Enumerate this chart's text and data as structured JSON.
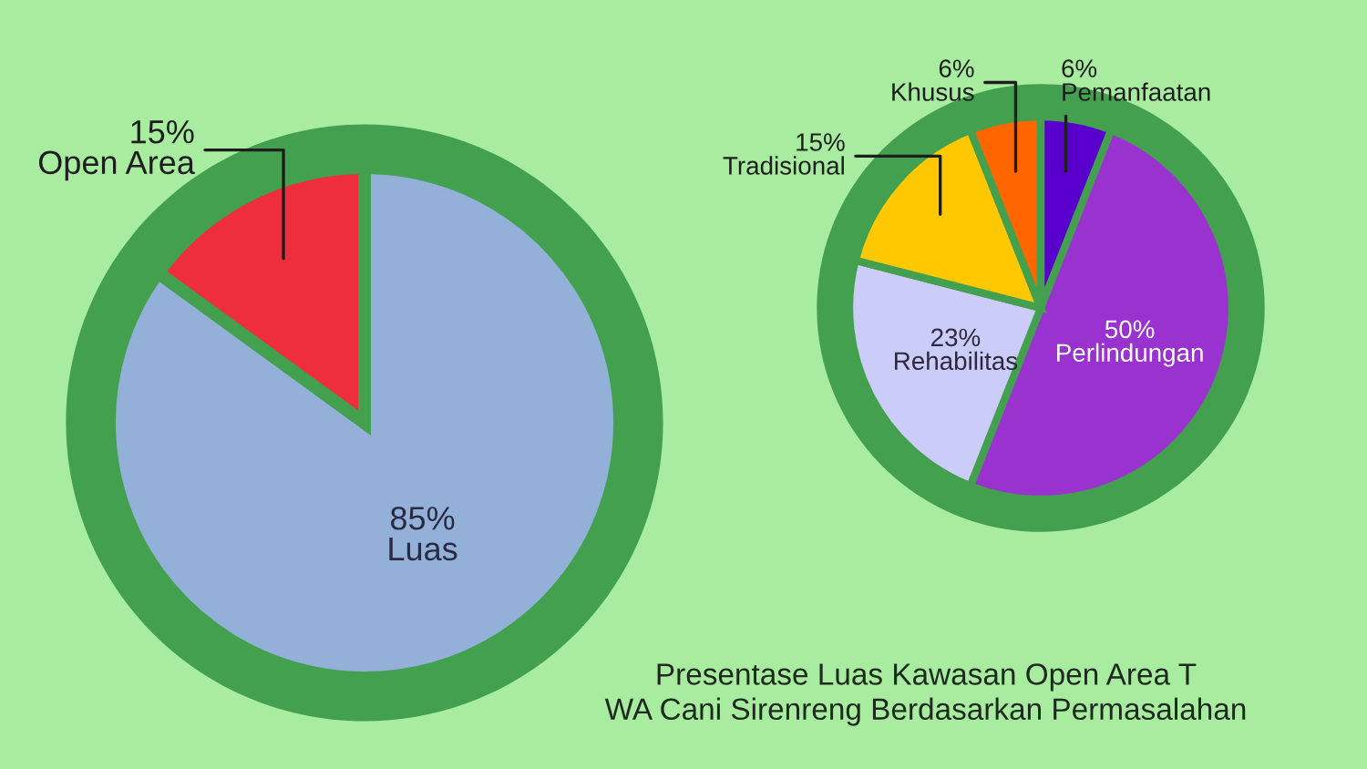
{
  "chart_data": [
    {
      "type": "pie",
      "categories": [
        "Luas",
        "Open Area"
      ],
      "values": [
        85,
        15
      ],
      "value_labels": [
        "85%",
        "15%"
      ],
      "colors": [
        "#92b0d8",
        "#ee2e3a"
      ]
    },
    {
      "type": "pie",
      "categories": [
        "Pemanfaatan",
        "Perlindungan",
        "Rehabilitas",
        "Tradisional",
        "Khusus"
      ],
      "values": [
        6,
        50,
        23,
        15,
        6
      ],
      "value_labels": [
        "6%",
        "50%",
        "23%",
        "15%",
        "6%"
      ],
      "colors": [
        "#5a00cc",
        "#9a32d0",
        "#ccccf8",
        "#ffc800",
        "#ff6600"
      ]
    },
    {
      "type": "other",
      "title": "Presentase Luas Kawasan Open Area T\nWA Cani Sirenreng Berdasarkan Permasalahan"
    }
  ]
}
